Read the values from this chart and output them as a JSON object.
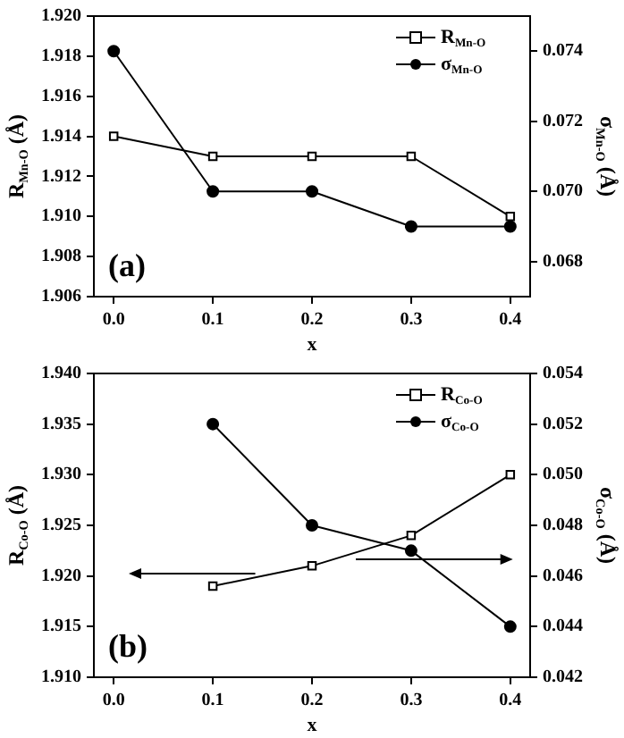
{
  "chart_data": [
    {
      "type": "line",
      "xlabel": "x",
      "ylabel": "R$_{Mn-O}$ (Å)",
      "y2label": "σ$_{Mn-O}$ (Å)",
      "legend": "top right",
      "annotations": [
        "(a)"
      ],
      "x": [
        0,
        0.1,
        0.2,
        0.3,
        0.4
      ],
      "xlim": [
        -0.02,
        0.42
      ],
      "xticks": [
        {
          "value": 0,
          "label": "0.0"
        },
        {
          "value": 0.1,
          "label": "0.1"
        },
        {
          "value": 0.2,
          "label": "0.2"
        },
        {
          "value": 0.3,
          "label": "0.3"
        },
        {
          "value": 0.4,
          "label": "0.4"
        }
      ],
      "ylim": [
        1.906,
        1.92
      ],
      "yticks": [
        {
          "value": 1.906,
          "label": "1.906"
        },
        {
          "value": 1.908,
          "label": "1.908"
        },
        {
          "value": 1.91,
          "label": "1.910"
        },
        {
          "value": 1.912,
          "label": "1.912"
        },
        {
          "value": 1.914,
          "label": "1.914"
        },
        {
          "value": 1.916,
          "label": "1.916"
        },
        {
          "value": 1.918,
          "label": "1.918"
        },
        {
          "value": 1.92,
          "label": "1.920"
        }
      ],
      "y2lim": [
        0.067,
        0.075
      ],
      "y2ticks": [
        {
          "value": 0.068,
          "label": "0.068"
        },
        {
          "value": 0.07,
          "label": "0.070"
        },
        {
          "value": 0.072,
          "label": "0.072"
        },
        {
          "value": 0.074,
          "label": "0.074"
        }
      ],
      "series": [
        {
          "name": "R$_{Mn-O}$",
          "color": "#000000",
          "marker": "square",
          "values": [
            1.914,
            1.913,
            1.913,
            1.913,
            1.91
          ]
        },
        {
          "name": "σ$_{Mn-O}$",
          "color": "#000000",
          "marker": "circle",
          "axis": "y2",
          "values": [
            0.074,
            0.07,
            0.07,
            0.069,
            0.069
          ]
        }
      ]
    },
    {
      "type": "line",
      "xlabel": "x",
      "ylabel": "R$_{Co-O}$ (Å)",
      "y2label": "σ$_{Co-O}$ (Å)",
      "legend": "top right",
      "annotations": [
        "(b)"
      ],
      "x": [
        0.1,
        0.2,
        0.3,
        0.4
      ],
      "xlim": [
        -0.02,
        0.42
      ],
      "xticks": [
        {
          "value": 0,
          "label": "0.0"
        },
        {
          "value": 0.1,
          "label": "0.1"
        },
        {
          "value": 0.2,
          "label": "0.2"
        },
        {
          "value": 0.3,
          "label": "0.3"
        },
        {
          "value": 0.4,
          "label": "0.4"
        }
      ],
      "ylim": [
        1.91,
        1.94
      ],
      "yticks": [
        {
          "value": 1.91,
          "label": "1.910"
        },
        {
          "value": 1.915,
          "label": "1.915"
        },
        {
          "value": 1.92,
          "label": "1.920"
        },
        {
          "value": 1.925,
          "label": "1.925"
        },
        {
          "value": 1.93,
          "label": "1.930"
        },
        {
          "value": 1.935,
          "label": "1.935"
        },
        {
          "value": 1.94,
          "label": "1.940"
        }
      ],
      "y2lim": [
        0.042,
        0.054
      ],
      "y2ticks": [
        {
          "value": 0.042,
          "label": "0.042"
        },
        {
          "value": 0.044,
          "label": "0.044"
        },
        {
          "value": 0.046,
          "label": "0.046"
        },
        {
          "value": 0.048,
          "label": "0.048"
        },
        {
          "value": 0.05,
          "label": "0.050"
        },
        {
          "value": 0.052,
          "label": "0.052"
        },
        {
          "value": 0.054,
          "label": "0.054"
        }
      ],
      "series": [
        {
          "name": "R$_{Co-O}$",
          "color": "#000000",
          "marker": "square",
          "values": [
            1.919,
            1.921,
            1.924,
            1.93
          ]
        },
        {
          "name": "σ$_{Co-O}$",
          "color": "#000000",
          "marker": "circle",
          "axis": "y2",
          "values": [
            0.052,
            0.048,
            0.047,
            0.044
          ]
        }
      ]
    }
  ]
}
